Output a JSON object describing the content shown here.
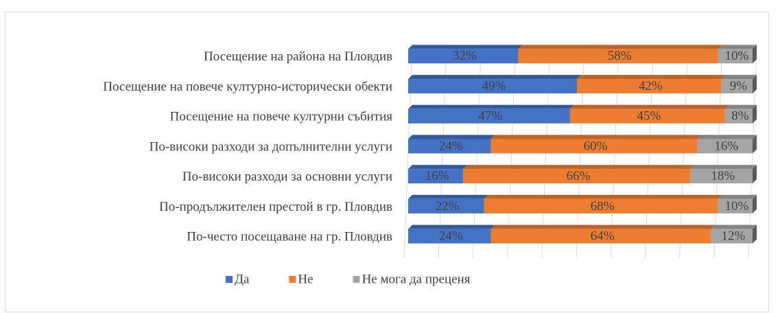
{
  "chart_data": {
    "type": "bar",
    "orientation": "horizontal",
    "stacked": true,
    "categories": [
      "Посещение на района на Пловдив",
      "Посещение на повече културно-исторически обекти",
      "Посещение на повече културни събития",
      "По-високи разходи за допълнителни услуги",
      "По-високи разходи за основни услуги",
      "По-продължителен престой в гр. Пловдив",
      "По-често посещаване на гр. Пловдив"
    ],
    "series": [
      {
        "name": "Да",
        "color": "#4472c4",
        "values": [
          32,
          49,
          47,
          24,
          16,
          22,
          24
        ],
        "value_labels": [
          "32%",
          "49%",
          "47%",
          "24%",
          "16%",
          "22%",
          "24%"
        ]
      },
      {
        "name": "Не",
        "color": "#ed7d31",
        "values": [
          58,
          42,
          45,
          60,
          66,
          68,
          64
        ],
        "value_labels": [
          "58%",
          "42%",
          "45%",
          "60%",
          "66%",
          "68%",
          "64%"
        ]
      },
      {
        "name": "Не мога да преценя",
        "color": "#a5a5a5",
        "values": [
          10,
          9,
          8,
          16,
          18,
          10,
          12
        ],
        "value_labels": [
          "10%",
          "9%",
          "8%",
          "16%",
          "18%",
          "10%",
          "12%"
        ]
      }
    ],
    "xlim": [
      0,
      100
    ],
    "xticks": [
      0,
      10,
      20,
      30,
      40,
      50,
      60,
      70,
      80,
      90,
      100
    ],
    "grid": true,
    "legend": "bottom"
  }
}
